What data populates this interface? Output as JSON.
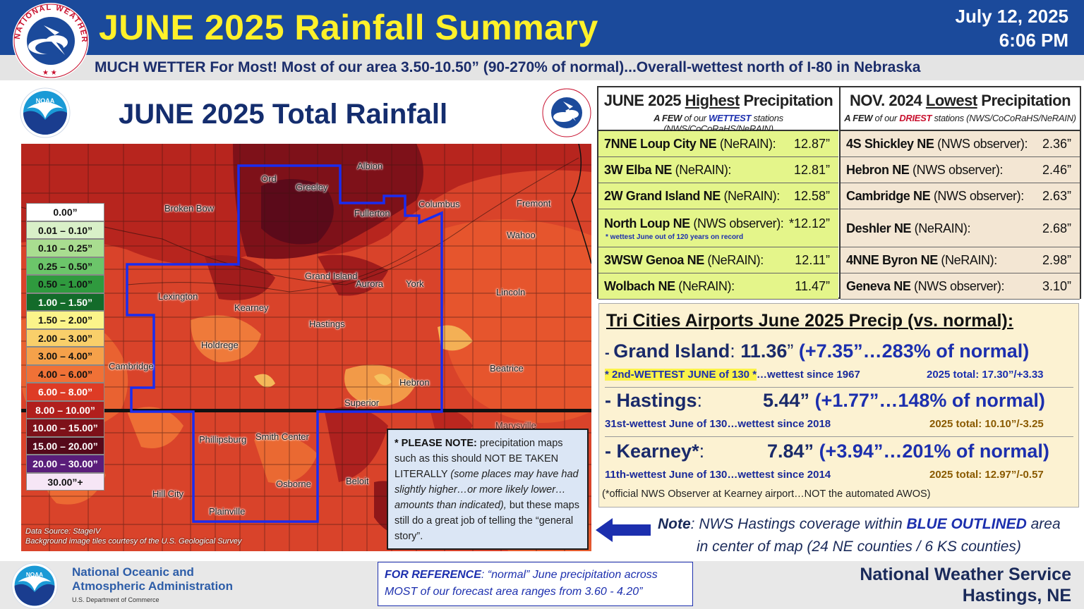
{
  "header": {
    "title": "JUNE 2025 Rainfall Summary",
    "date": "July 12, 2025",
    "time": "6:06 PM",
    "subtitle": "MUCH WETTER For Most!  Most of our area 3.50-10.50” (90-270% of normal)...Overall-wettest north of I-80 in Nebraska",
    "logo_text": "NATIONAL WEATHER SERVICE"
  },
  "map": {
    "title": "JUNE 2025 Total Rainfall",
    "cities": [
      "Albion",
      "Ord",
      "Greeley",
      "Broken Bow",
      "Fullerton",
      "Columbus",
      "Fremont",
      "Wahoo",
      "Grand Island",
      "Aurora",
      "York",
      "Lexington",
      "Kearney",
      "Lincoln",
      "Hastings",
      "Holdrege",
      "Cambridge",
      "Beatrice",
      "Hebron",
      "Superior",
      "Phillipsburg",
      "Smith Center",
      "Hill City",
      "Osborne",
      "Beloit",
      "Plainville",
      "Marysville"
    ],
    "credit_line1": "Data Source: StageIV",
    "credit_line2": "Background image tiles courtesy of the U.S. Geological Survey",
    "coverage_outline_color": "#1a2cf0"
  },
  "legend": [
    {
      "label": "0.00”",
      "color": "#ffffff",
      "text": "#111111"
    },
    {
      "label": "0.01 – 0.10”",
      "color": "#d9f0c8",
      "text": "#111111"
    },
    {
      "label": "0.10 – 0.25”",
      "color": "#a9dd90",
      "text": "#111111"
    },
    {
      "label": "0.25 – 0.50”",
      "color": "#6cc56a",
      "text": "#111111"
    },
    {
      "label": "0.50 – 1.00”",
      "color": "#2f9a3e",
      "text": "#111111"
    },
    {
      "label": "1.00 – 1.50”",
      "color": "#136b2a",
      "text": "#ffffff"
    },
    {
      "label": "1.50 – 2.00”",
      "color": "#fbf48a",
      "text": "#111111"
    },
    {
      "label": "2.00 – 3.00”",
      "color": "#f9cf6a",
      "text": "#111111"
    },
    {
      "label": "3.00 – 4.00”",
      "color": "#f5a14a",
      "text": "#111111"
    },
    {
      "label": "4.00 – 6.00”",
      "color": "#f07136",
      "text": "#111111"
    },
    {
      "label": "6.00 – 8.00”",
      "color": "#de3b25",
      "text": "#ffffff"
    },
    {
      "label": "8.00 – 10.00”",
      "color": "#b11f1d",
      "text": "#ffffff"
    },
    {
      "label": "10.00 – 15.00”",
      "color": "#7e1119",
      "text": "#ffffff"
    },
    {
      "label": "15.00 – 20.00”",
      "color": "#55091a",
      "text": "#ffffff"
    },
    {
      "label": "20.00 – 30.00”",
      "color": "#5a1d7a",
      "text": "#ffffff"
    },
    {
      "label": "30.00”+",
      "color": "#f6e6f6",
      "text": "#111111"
    }
  ],
  "note_box": {
    "bold": "* PLEASE NOTE:",
    "text1": " precipitation maps such as this should NOT BE TAKEN LITERALLY ",
    "italic": "(some places may have had slightly higher…or more likely lower… amounts than indicated),",
    "text2": " but these maps still do a great job of telling the “general story”."
  },
  "highest": {
    "title_pre": "JUNE 2025 ",
    "title_u": "Highest",
    "title_post": " Precipitation",
    "sub_pre": "A FEW",
    "sub_mid": " of our ",
    "sub_hl": "WETTEST",
    "sub_post": " stations (NWS/CoCoRaHS/NeRAIN)",
    "rows": [
      {
        "name": "7NNE Loup City NE",
        "src": " (NeRAIN):",
        "val": "12.87”"
      },
      {
        "name": "3W Elba NE",
        "src": " (NeRAIN):",
        "val": "12.81”"
      },
      {
        "name": "2W Grand Island NE",
        "src": " (NeRAIN):",
        "val": "12.58”"
      },
      {
        "name": "North Loup NE",
        "src": " (NWS observer):",
        "val": "*12.12”",
        "note": "* wettest June out of 120 years on record"
      },
      {
        "name": "3WSW Genoa NE",
        "src": " (NeRAIN):",
        "val": "12.11”"
      },
      {
        "name": "Wolbach NE",
        "src": " (NeRAIN):",
        "val": "11.47”"
      }
    ]
  },
  "lowest": {
    "title_pre": "NOV. 2024 ",
    "title_u": "Lowest",
    "title_post": " Precipitation",
    "sub_pre": "A FEW",
    "sub_mid": " of our ",
    "sub_hl": "DRIEST",
    "sub_post": " stations (NWS/CoCoRaHS/NeRAIN)",
    "rows": [
      {
        "name": "4S Shickley NE",
        "src": " (NWS observer):",
        "val": "2.36”"
      },
      {
        "name": "Hebron NE",
        "src": " (NWS observer):",
        "val": "2.46”"
      },
      {
        "name": "Cambridge NE",
        "src": " (NWS observer):",
        "val": "2.63”"
      },
      {
        "name": "Deshler NE",
        "src": " (NeRAIN):",
        "val": "2.68”"
      },
      {
        "name": "4NNE Byron NE",
        "src": " (NeRAIN):",
        "val": "2.98”"
      },
      {
        "name": "Geneva NE",
        "src": " (NWS observer):",
        "val": "3.10”"
      }
    ]
  },
  "airports": {
    "title": "Tri Cities Airports June 2025 Precip (vs. normal):",
    "gi": {
      "dash": "- ",
      "name": "Grand Island",
      "colon": ": ",
      "amount": "11.36",
      "quote": "”",
      "anom": " (+7.35”…283% of normal)",
      "hl": "* 2nd-WETTEST JUNE of 130 *",
      "sub": "…wettest since 1967",
      "total": "2025 total: 17.30”/+3.33"
    },
    "hastings": {
      "dash": "- ",
      "name": "Hastings",
      "colon": ":",
      "amount": "5.44”",
      "anom": " (+1.77”…148% of normal)",
      "sub": "31st-wettest June of 130…wettest since 2018",
      "total": "2025 total: 10.10”/-3.25"
    },
    "kearney": {
      "dash": "- ",
      "name": "Kearney*",
      "colon": ":",
      "amount": "7.84”",
      "anom": " (+3.94”…201% of normal)",
      "sub": "11th-wettest June of 130…wettest since 2014",
      "total": "2025 total: 12.97”/-0.57"
    },
    "footnote": "(*official NWS Observer at Kearney airport…NOT the automated AWOS)"
  },
  "coverage_note": {
    "lead": "Note",
    "text1": ": NWS Hastings coverage within ",
    "bold": "BLUE OUTLINED",
    "text2": " area",
    "line2": "in center of map (24 NE counties / 6 KS counties)"
  },
  "footer": {
    "noaa_line1": "National Oceanic and",
    "noaa_line2": "Atmospheric Administration",
    "noaa_dept": "U.S. Department of Commerce",
    "ref_lead": "FOR REFERENCE",
    "ref_text": ": “normal” June precipitation across MOST of our forecast area ranges from 3.60 - 4.20”",
    "nws_line1": "National Weather Service",
    "nws_line2": "Hastings, NE",
    "noaa_logo_text": "NOAA"
  }
}
